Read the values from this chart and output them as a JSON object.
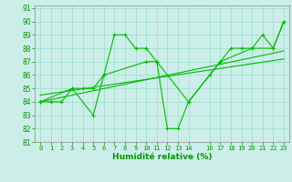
{
  "background_color": "#cceee8",
  "grid_color": "#99ddcc",
  "line_color": "#00bb00",
  "xlabel": "Humidité relative (%)",
  "xlabel_color": "#009900",
  "tick_color": "#009900",
  "xlim": [
    -0.5,
    23.5
  ],
  "ylim": [
    81,
    91.2
  ],
  "yticks": [
    81,
    82,
    83,
    84,
    85,
    86,
    87,
    88,
    89,
    90,
    91
  ],
  "xticks": [
    0,
    1,
    2,
    3,
    4,
    5,
    6,
    7,
    8,
    9,
    10,
    11,
    12,
    13,
    14,
    16,
    17,
    18,
    19,
    20,
    21,
    22,
    23
  ],
  "series": [
    {
      "x": [
        0,
        1,
        2,
        3,
        4,
        5,
        6,
        7,
        8,
        9,
        10,
        11,
        12,
        13,
        14,
        16,
        17,
        18,
        19,
        20,
        21,
        22,
        23
      ],
      "y": [
        84,
        84,
        84,
        85,
        85,
        85,
        86,
        89,
        89,
        88,
        88,
        87,
        82,
        82,
        84,
        86,
        87,
        88,
        88,
        88,
        89,
        88,
        90
      ],
      "marker": true
    },
    {
      "x": [
        0,
        3,
        5,
        6,
        10,
        11,
        14,
        17,
        20,
        22,
        23
      ],
      "y": [
        84,
        85,
        83,
        86,
        87,
        87,
        84,
        87,
        88,
        88,
        90
      ],
      "marker": true
    },
    {
      "x": [
        0,
        23
      ],
      "y": [
        84.0,
        87.8
      ],
      "marker": false
    },
    {
      "x": [
        0,
        23
      ],
      "y": [
        84.5,
        87.2
      ],
      "marker": false
    }
  ]
}
